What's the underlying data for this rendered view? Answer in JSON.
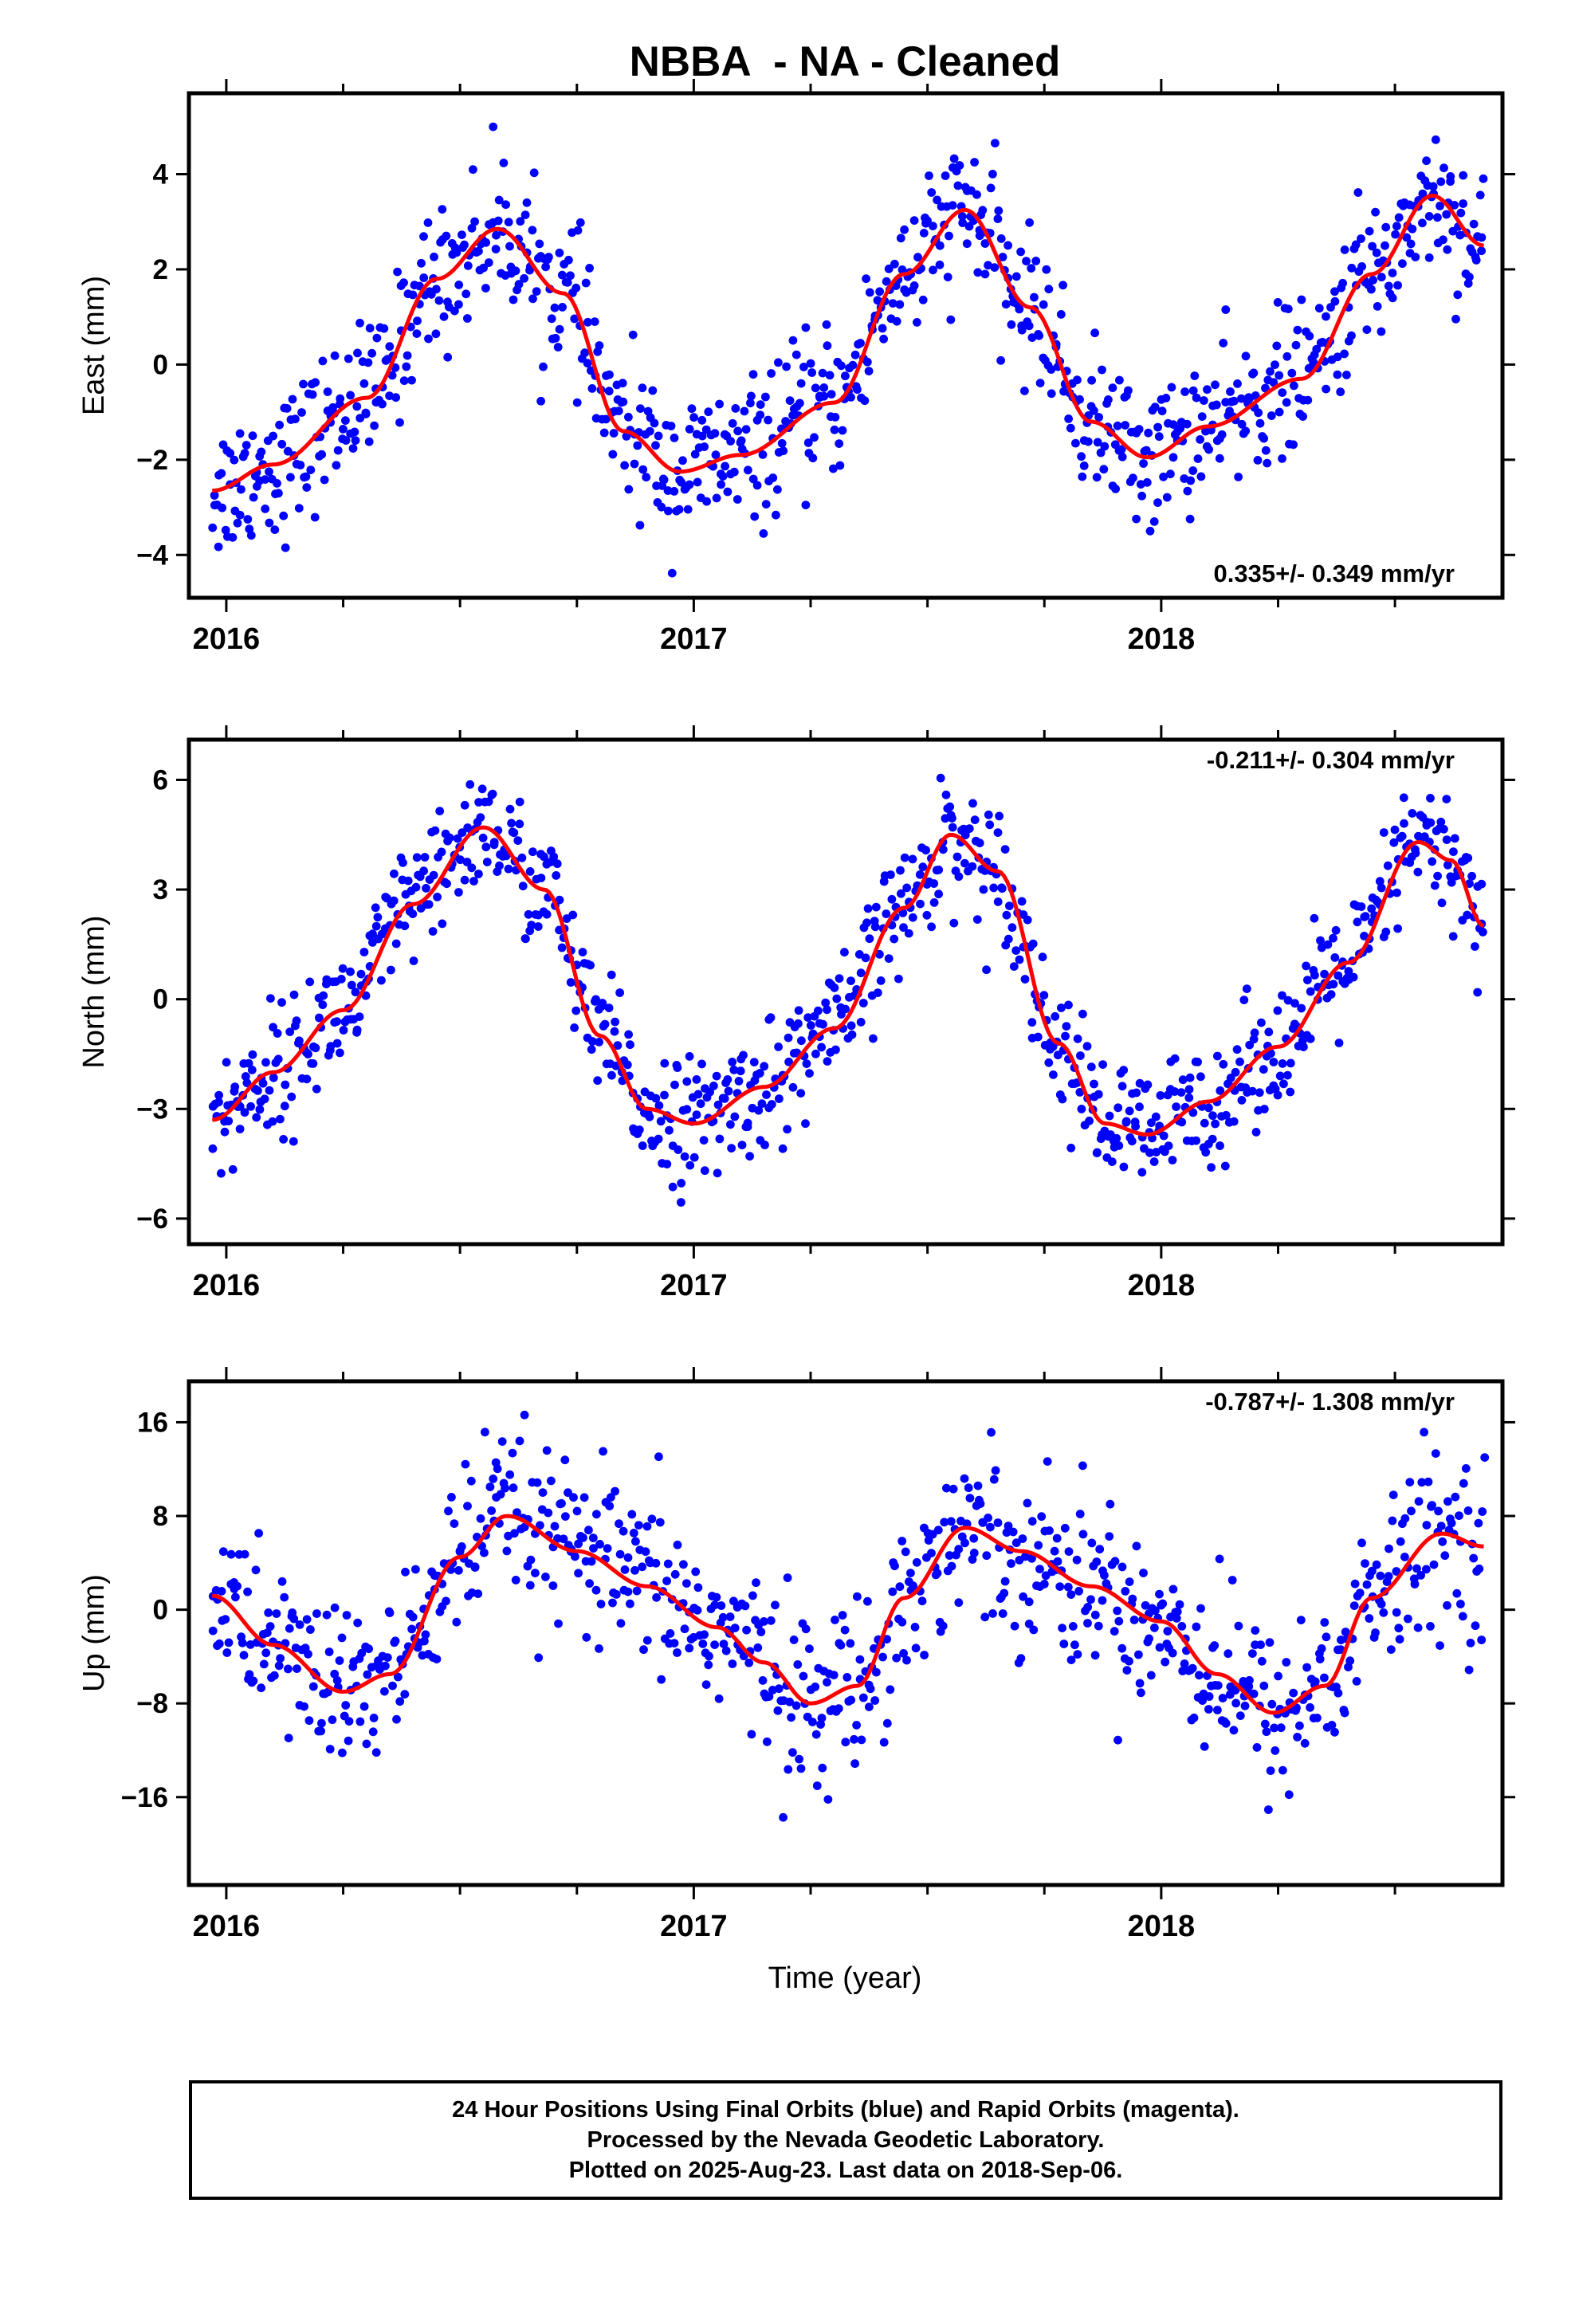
{
  "title": "NBBA  - NA - Cleaned",
  "xlabel": "Time (year)",
  "footer": {
    "line1": "24 Hour Positions Using Final Orbits (blue) and Rapid Orbits (magenta).",
    "line2": "Processed by the Nevada Geodetic Laboratory.",
    "line3": "Plotted on 2025-Aug-23. Last data on 2018-Sep-06."
  },
  "colors": {
    "points": "#0000ff",
    "fit": "#ff0000",
    "frame": "#000000"
  },
  "chart_data": [
    {
      "type": "scatter",
      "ylabel": "East (mm)",
      "rate_label": "0.335+/- 0.349 mm/yr",
      "rate_position": "bottom-right",
      "xlim": [
        2015.92,
        2018.73
      ],
      "ylim": [
        -4.9,
        5.7
      ],
      "yticks": [
        -4,
        -2,
        0,
        2,
        4
      ],
      "ytick_labels": [
        "−4",
        "−2",
        "0",
        "2",
        "4"
      ],
      "xticks": [
        2016,
        2017,
        2018
      ],
      "xtick_labels": [
        "2016",
        "2017",
        "2018"
      ],
      "trend": [
        2015.97,
        2018.69
      ],
      "rate": 0.335,
      "noise": 0.75,
      "n_points": 900,
      "fit": {
        "x": [
          2015.97,
          2016.1,
          2016.3,
          2016.45,
          2016.58,
          2016.72,
          2016.85,
          2016.97,
          2017.1,
          2017.3,
          2017.45,
          2017.58,
          2017.72,
          2017.85,
          2017.97,
          2018.1,
          2018.3,
          2018.45,
          2018.58,
          2018.69
        ],
        "y": [
          -2.65,
          -2.1,
          -0.7,
          1.8,
          2.85,
          1.5,
          -1.4,
          -2.25,
          -1.9,
          -0.8,
          1.9,
          3.25,
          1.2,
          -1.2,
          -1.95,
          -1.3,
          -0.3,
          1.9,
          3.55,
          2.5
        ]
      }
    },
    {
      "type": "scatter",
      "ylabel": "North (mm)",
      "rate_label": "-0.211+/- 0.304 mm/yr",
      "rate_position": "top-right",
      "xlim": [
        2015.92,
        2018.73
      ],
      "ylim": [
        -6.7,
        7.1
      ],
      "yticks": [
        -6,
        -3,
        0,
        3,
        6
      ],
      "ytick_labels": [
        "−6",
        "−3",
        "0",
        "3",
        "6"
      ],
      "xticks": [
        2016,
        2017,
        2018
      ],
      "xtick_labels": [
        "2016",
        "2017",
        "2018"
      ],
      "trend": [
        2015.97,
        2018.69
      ],
      "rate": -0.211,
      "noise": 0.85,
      "n_points": 900,
      "fit": {
        "x": [
          2015.97,
          2016.1,
          2016.25,
          2016.4,
          2016.55,
          2016.68,
          2016.8,
          2016.9,
          2017.0,
          2017.15,
          2017.3,
          2017.45,
          2017.55,
          2017.65,
          2017.78,
          2017.88,
          2017.97,
          2018.1,
          2018.25,
          2018.4,
          2018.55,
          2018.62,
          2018.69
        ],
        "y": [
          -3.3,
          -2.0,
          -0.3,
          2.6,
          4.7,
          3.0,
          -1.0,
          -3.0,
          -3.4,
          -2.4,
          -0.8,
          2.5,
          4.5,
          3.5,
          -1.2,
          -3.4,
          -3.7,
          -2.8,
          -1.3,
          1.0,
          4.3,
          3.8,
          2.0
        ]
      }
    },
    {
      "type": "scatter",
      "ylabel": "Up (mm)",
      "rate_label": "-0.787+/- 1.308 mm/yr",
      "rate_position": "top-right",
      "xlim": [
        2015.92,
        2018.73
      ],
      "ylim": [
        -23.5,
        19.5
      ],
      "yticks": [
        -16,
        -8,
        0,
        8,
        16
      ],
      "ytick_labels": [
        "−16",
        "−8",
        "0",
        "8",
        "16"
      ],
      "xticks": [
        2016,
        2017,
        2018
      ],
      "xtick_labels": [
        "2016",
        "2017",
        "2018"
      ],
      "trend": [
        2015.97,
        2018.69
      ],
      "rate": -0.787,
      "noise": 3.6,
      "n_points": 850,
      "fit": {
        "x": [
          2015.97,
          2016.1,
          2016.25,
          2016.35,
          2016.5,
          2016.6,
          2016.75,
          2016.9,
          2017.05,
          2017.15,
          2017.25,
          2017.35,
          2017.45,
          2017.58,
          2017.7,
          2017.85,
          2018.0,
          2018.12,
          2018.24,
          2018.35,
          2018.45,
          2018.6,
          2018.69
        ],
        "y": [
          1.2,
          -3.0,
          -7.0,
          -5.5,
          4.5,
          8.0,
          5.0,
          2.0,
          -1.5,
          -4.5,
          -8.0,
          -6.5,
          1.0,
          7.0,
          5.0,
          2.0,
          -1.0,
          -5.5,
          -8.8,
          -6.5,
          1.0,
          6.5,
          5.4
        ]
      }
    }
  ]
}
